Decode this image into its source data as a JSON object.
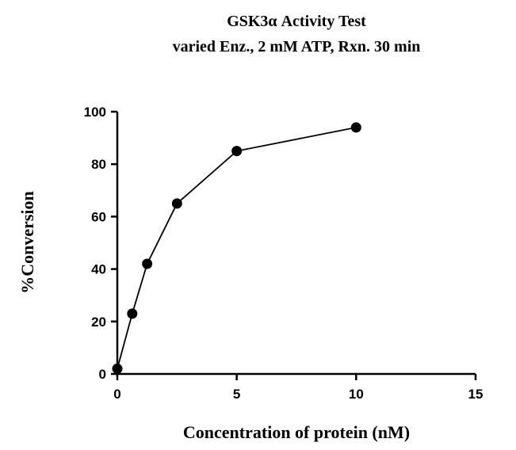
{
  "chart_data": {
    "type": "line",
    "title": "GSK3α Activity Test",
    "subtitle": "varied Enz., 2 mM ATP, Rxn. 30 min",
    "xlabel": "Concentration of protein (nM)",
    "ylabel": "%Conversion",
    "xlim": [
      0,
      15
    ],
    "ylim": [
      0,
      100
    ],
    "xticks": [
      0,
      5,
      10,
      15
    ],
    "yticks": [
      0,
      20,
      40,
      60,
      80,
      100
    ],
    "grid": false,
    "series": [
      {
        "x": [
          0,
          0.625,
          1.25,
          2.5,
          5,
          10
        ],
        "y": [
          2,
          23,
          42,
          65,
          85,
          94
        ],
        "color": "#000000",
        "marker": "circle"
      }
    ]
  }
}
